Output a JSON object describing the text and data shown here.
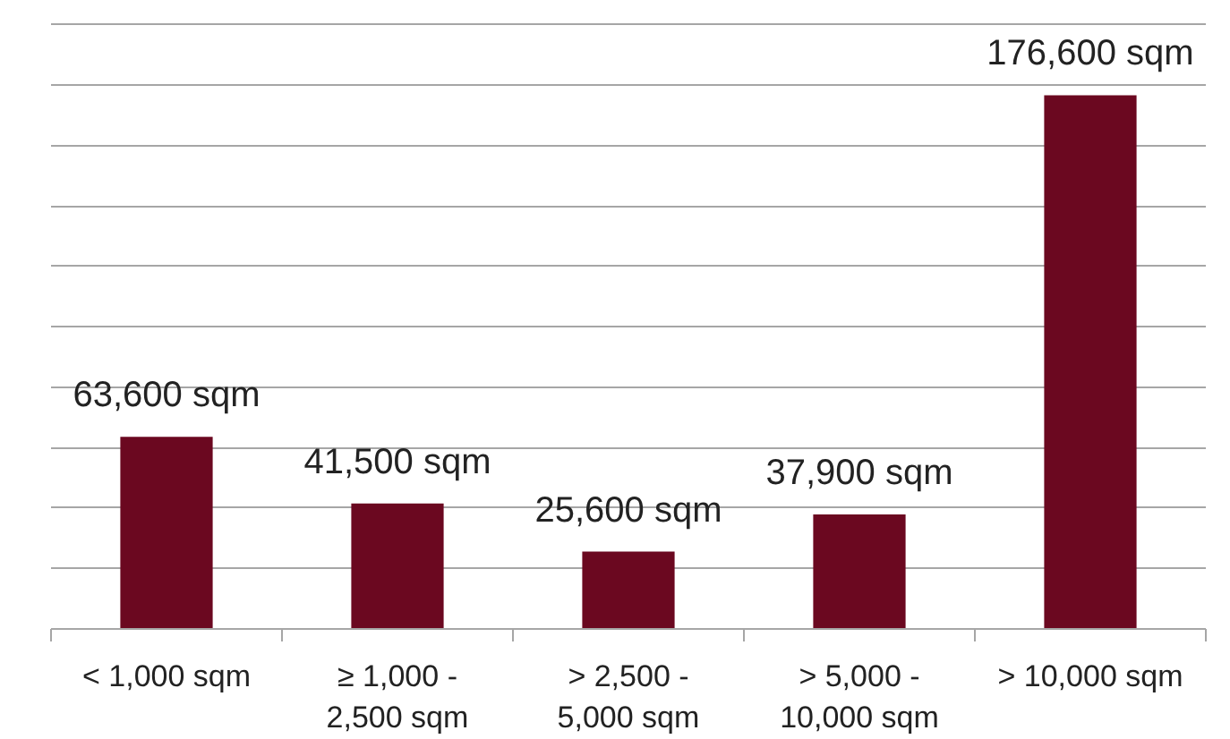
{
  "chart_data": {
    "type": "bar",
    "categories": [
      "< 1,000 sqm",
      "≥ 1,000 -\n2,500 sqm",
      "> 2,500 -\n5,000 sqm",
      "> 5,000 -\n10,000 sqm",
      "> 10,000 sqm"
    ],
    "values": [
      63600,
      41500,
      25600,
      37900,
      176600
    ],
    "value_labels": [
      "63,600 sqm",
      "41,500 sqm",
      "25,600 sqm",
      "37,900 sqm",
      "176,600 sqm"
    ],
    "color": "#6b0820",
    "grid": "y",
    "tick_labels": "x"
  }
}
